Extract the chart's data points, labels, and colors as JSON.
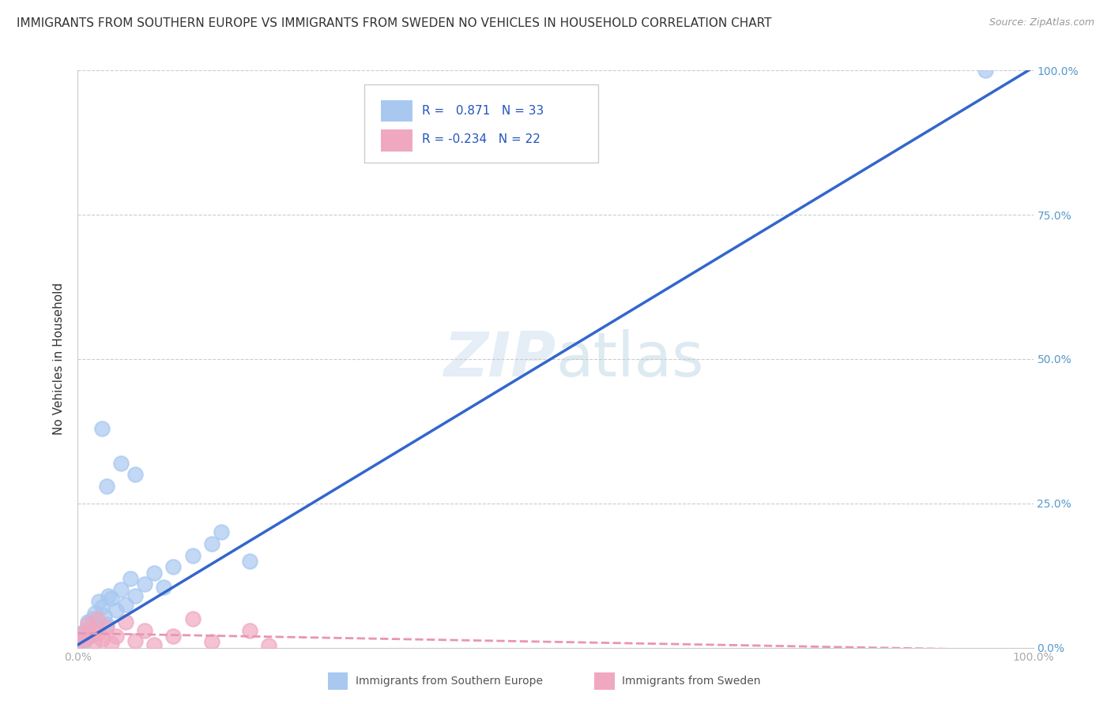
{
  "title": "IMMIGRANTS FROM SOUTHERN EUROPE VS IMMIGRANTS FROM SWEDEN NO VEHICLES IN HOUSEHOLD CORRELATION CHART",
  "source": "Source: ZipAtlas.com",
  "ylabel": "No Vehicles in Household",
  "legend_blue_r": "0.871",
  "legend_blue_n": "33",
  "legend_pink_r": "-0.234",
  "legend_pink_n": "22",
  "blue_color": "#a8c8f0",
  "pink_color": "#f0a8c0",
  "blue_line_color": "#3366cc",
  "pink_line_color": "#e896b0",
  "blue_scatter": [
    [
      0.3,
      1.5
    ],
    [
      0.5,
      2.5
    ],
    [
      0.6,
      1.0
    ],
    [
      0.8,
      3.0
    ],
    [
      1.0,
      4.5
    ],
    [
      1.2,
      2.0
    ],
    [
      1.5,
      5.0
    ],
    [
      1.8,
      6.0
    ],
    [
      2.0,
      3.5
    ],
    [
      2.2,
      8.0
    ],
    [
      2.5,
      7.0
    ],
    [
      2.8,
      5.5
    ],
    [
      3.0,
      4.0
    ],
    [
      3.2,
      9.0
    ],
    [
      3.5,
      8.5
    ],
    [
      4.0,
      6.5
    ],
    [
      4.5,
      10.0
    ],
    [
      5.0,
      7.5
    ],
    [
      5.5,
      12.0
    ],
    [
      6.0,
      9.0
    ],
    [
      7.0,
      11.0
    ],
    [
      8.0,
      13.0
    ],
    [
      9.0,
      10.5
    ],
    [
      10.0,
      14.0
    ],
    [
      12.0,
      16.0
    ],
    [
      14.0,
      18.0
    ],
    [
      15.0,
      20.0
    ],
    [
      3.0,
      28.0
    ],
    [
      4.5,
      32.0
    ],
    [
      6.0,
      30.0
    ],
    [
      2.5,
      38.0
    ],
    [
      18.0,
      15.0
    ],
    [
      95.0,
      100.0
    ]
  ],
  "pink_scatter": [
    [
      0.2,
      1.0
    ],
    [
      0.5,
      2.5
    ],
    [
      0.8,
      1.5
    ],
    [
      1.0,
      4.0
    ],
    [
      1.2,
      2.0
    ],
    [
      1.5,
      3.0
    ],
    [
      1.8,
      1.0
    ],
    [
      2.0,
      5.0
    ],
    [
      2.2,
      2.5
    ],
    [
      2.5,
      1.5
    ],
    [
      3.0,
      3.5
    ],
    [
      3.5,
      0.8
    ],
    [
      4.0,
      2.0
    ],
    [
      5.0,
      4.5
    ],
    [
      6.0,
      1.2
    ],
    [
      7.0,
      3.0
    ],
    [
      8.0,
      0.5
    ],
    [
      10.0,
      2.0
    ],
    [
      12.0,
      5.0
    ],
    [
      14.0,
      1.0
    ],
    [
      18.0,
      3.0
    ],
    [
      20.0,
      0.3
    ]
  ],
  "xlim": [
    0,
    100
  ],
  "ylim": [
    0,
    100
  ],
  "background_color": "#ffffff",
  "grid_color": "#cccccc",
  "right_tick_color": "#5599cc",
  "xtick_color": "#aaaaaa",
  "title_color": "#333333",
  "source_color": "#999999",
  "ylabel_color": "#333333"
}
